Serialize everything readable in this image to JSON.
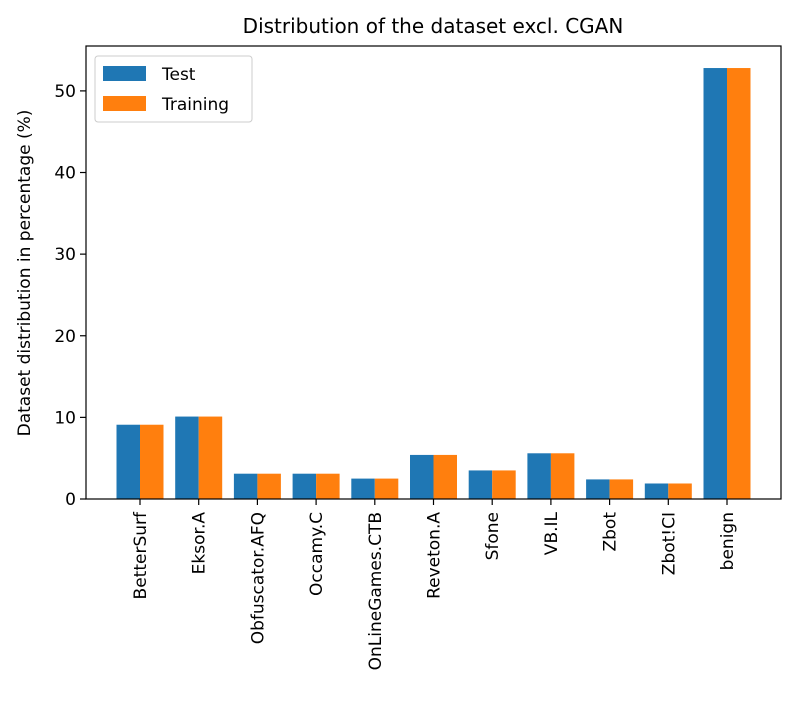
{
  "chart_data": {
    "type": "bar",
    "title": "Distribution of the dataset excl. CGAN",
    "xlabel": "",
    "ylabel": "Dataset distribution in percentage (%)",
    "categories": [
      "BetterSurf",
      "Eksor.A",
      "Obfuscator.AFQ",
      "Occamy.C",
      "OnLineGames.CTB",
      "Reveton.A",
      "Sfone",
      "VB.IL",
      "Zbot",
      "Zbot!CI",
      "benign"
    ],
    "series": [
      {
        "name": "Test",
        "color": "#1f77b4",
        "values": [
          9.1,
          10.1,
          3.1,
          3.1,
          2.5,
          5.4,
          3.5,
          5.6,
          2.4,
          1.9,
          52.8
        ]
      },
      {
        "name": "Training",
        "color": "#ff7f0e",
        "values": [
          9.1,
          10.1,
          3.1,
          3.1,
          2.5,
          5.4,
          3.5,
          5.6,
          2.4,
          1.9,
          52.8
        ]
      }
    ],
    "ylim": [
      0,
      55.5
    ],
    "yticks": [
      0,
      10,
      20,
      30,
      40,
      50
    ],
    "grid": false,
    "legend_position": "top-left"
  }
}
